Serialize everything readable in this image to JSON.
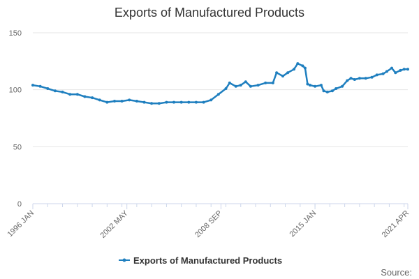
{
  "chart_data": {
    "type": "line",
    "title": "Exports of Manufactured Products",
    "xlabel": "",
    "ylabel": "",
    "x_tick_labels": [
      "1996 JAN",
      "2002 MAY",
      "2008 SEP",
      "2015 JAN",
      "2021 APR"
    ],
    "x_tick_dates": [
      "1996-01",
      "2002-05",
      "2008-09",
      "2015-01",
      "2021-04"
    ],
    "y_ticks": [
      0,
      50,
      100,
      150
    ],
    "ylim": [
      0,
      150
    ],
    "grid": true,
    "legend_position": "bottom",
    "series": [
      {
        "name": "Exports of Manufactured Products",
        "color": "#1f7fbf",
        "points": [
          [
            "1996-01",
            104
          ],
          [
            "1996-07",
            103
          ],
          [
            "1997-01",
            101
          ],
          [
            "1997-07",
            99
          ],
          [
            "1998-01",
            98
          ],
          [
            "1998-07",
            96
          ],
          [
            "1999-01",
            96
          ],
          [
            "1999-07",
            94
          ],
          [
            "2000-01",
            93
          ],
          [
            "2000-07",
            91
          ],
          [
            "2001-01",
            89
          ],
          [
            "2001-07",
            90
          ],
          [
            "2002-01",
            90
          ],
          [
            "2002-07",
            91
          ],
          [
            "2003-01",
            90
          ],
          [
            "2003-07",
            89
          ],
          [
            "2004-01",
            88
          ],
          [
            "2004-07",
            88
          ],
          [
            "2005-01",
            89
          ],
          [
            "2005-07",
            89
          ],
          [
            "2006-01",
            89
          ],
          [
            "2006-07",
            89
          ],
          [
            "2007-01",
            89
          ],
          [
            "2007-07",
            89
          ],
          [
            "2008-01",
            91
          ],
          [
            "2008-07",
            96
          ],
          [
            "2009-01",
            101
          ],
          [
            "2009-04",
            106
          ],
          [
            "2009-09",
            103
          ],
          [
            "2010-01",
            104
          ],
          [
            "2010-05",
            107
          ],
          [
            "2010-09",
            103
          ],
          [
            "2011-03",
            104
          ],
          [
            "2011-09",
            106
          ],
          [
            "2012-03",
            106
          ],
          [
            "2012-06",
            115
          ],
          [
            "2012-11",
            112
          ],
          [
            "2013-03",
            115
          ],
          [
            "2013-08",
            118
          ],
          [
            "2013-11",
            123
          ],
          [
            "2014-03",
            121
          ],
          [
            "2014-05",
            119
          ],
          [
            "2014-07",
            105
          ],
          [
            "2014-09",
            104
          ],
          [
            "2015-01",
            103
          ],
          [
            "2015-06",
            104
          ],
          [
            "2015-08",
            99
          ],
          [
            "2015-11",
            98
          ],
          [
            "2016-03",
            99
          ],
          [
            "2016-06",
            101
          ],
          [
            "2016-11",
            103
          ],
          [
            "2017-03",
            108
          ],
          [
            "2017-06",
            110
          ],
          [
            "2017-09",
            109
          ],
          [
            "2018-01",
            110
          ],
          [
            "2018-06",
            110
          ],
          [
            "2018-11",
            111
          ],
          [
            "2019-03",
            113
          ],
          [
            "2019-08",
            114
          ],
          [
            "2019-11",
            116
          ],
          [
            "2020-03",
            119
          ],
          [
            "2020-06",
            115
          ],
          [
            "2020-10",
            117
          ],
          [
            "2021-01",
            118
          ],
          [
            "2021-04",
            118
          ]
        ]
      }
    ]
  },
  "source_label": "Source:"
}
